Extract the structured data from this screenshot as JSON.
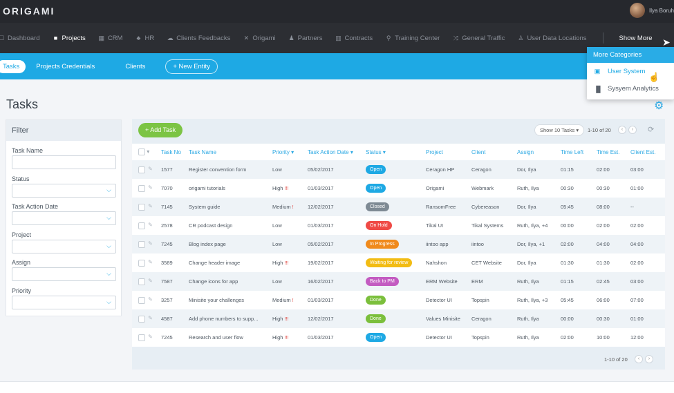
{
  "topbar": {
    "logo": "ORIGAMI",
    "user_name": "Ilya Boruh"
  },
  "nav": {
    "items": [
      {
        "label": "Dashboard",
        "icon": "☐",
        "active": false
      },
      {
        "label": "Projects",
        "icon": "■",
        "active": true
      },
      {
        "label": "CRM",
        "icon": "▦",
        "active": false
      },
      {
        "label": "HR",
        "icon": "♣",
        "active": false
      },
      {
        "label": "Clients Feedbacks",
        "icon": "☁",
        "active": false
      },
      {
        "label": "Origami",
        "icon": "✕",
        "active": false
      },
      {
        "label": "Partners",
        "icon": "♟",
        "active": false
      },
      {
        "label": "Contracts",
        "icon": "▥",
        "active": false
      },
      {
        "label": "Training Center",
        "icon": "⚲",
        "active": false
      },
      {
        "label": "General Traffic",
        "icon": "⤨",
        "active": false
      },
      {
        "label": "User Data Locations",
        "icon": "♙",
        "active": false
      }
    ],
    "more_label": "Show More"
  },
  "subnav": {
    "tabs": [
      "Tasks",
      "Projects Credentials",
      "Clients"
    ],
    "new_entity": "+ New Entity"
  },
  "dropdown": {
    "title": "More Categories",
    "items": [
      {
        "label": "User System",
        "icon": "▣"
      },
      {
        "label": "Sysyem Analytics",
        "icon": "▐▌"
      }
    ]
  },
  "page": {
    "title": "Tasks"
  },
  "filter": {
    "title": "Filter",
    "fields": [
      "Task Name",
      "Status",
      "Task Action Date",
      "Project",
      "Assign",
      "Priority"
    ]
  },
  "table": {
    "add_task": "+ Add Task",
    "show_select": "Show 10 Tasks",
    "range": "1-10 of 20",
    "footer_range": "1-10 of 20",
    "headers": [
      "Task No",
      "Task Name",
      "Priority",
      "Task Action Date",
      "Status",
      "Project",
      "Client",
      "Assign",
      "Time Left",
      "Time Est.",
      "Client Est."
    ],
    "rows": [
      {
        "no": "1577",
        "name": "Register convention form",
        "priority": "Low",
        "flag": "",
        "date": "05/02/2017",
        "status": "Open",
        "status_color": "#1ea9e4",
        "project": "Ceragon HP",
        "client": "Ceragon",
        "assign": "Dor, Ilya",
        "left": "01:15",
        "est": "02:00",
        "client_est": "03:00"
      },
      {
        "no": "7070",
        "name": "origami tutorials",
        "priority": "High",
        "flag": "!!!",
        "date": "01/03/2017",
        "status": "Open",
        "status_color": "#1ea9e4",
        "project": "Origami",
        "client": "Webmark",
        "assign": "Ruth, Ilya",
        "left": "00:30",
        "est": "00:30",
        "client_est": "01:00"
      },
      {
        "no": "7145",
        "name": "System guide",
        "priority": "Medium",
        "flag": "!",
        "date": "12/02/2017",
        "status": "Closed",
        "status_color": "#7e8a94",
        "project": "RansomFree",
        "client": "Cybereason",
        "assign": "Dor, Ilya",
        "left": "05:45",
        "est": "08:00",
        "client_est": "--"
      },
      {
        "no": "2578",
        "name": "CR podcast design",
        "priority": "Low",
        "flag": "",
        "date": "01/03/2017",
        "status": "On Hold",
        "status_color": "#ef4a46",
        "project": "Tikal UI",
        "client": "Tikal Systems",
        "assign": "Ruth, Ilya, +4",
        "left": "00:00",
        "est": "02:00",
        "client_est": "02:00"
      },
      {
        "no": "7245",
        "name": "Blog index page",
        "priority": "Low",
        "flag": "",
        "date": "05/02/2017",
        "status": "In Progress",
        "status_color": "#f08a1c",
        "project": "iintoo app",
        "client": "iintoo",
        "assign": "Dor, Ilya, +1",
        "left": "02:00",
        "est": "04:00",
        "client_est": "04:00"
      },
      {
        "no": "3589",
        "name": "Change header image",
        "priority": "High",
        "flag": "!!!",
        "date": "19/02/2017",
        "status": "Waiting for review",
        "status_color": "#f2bc13",
        "project": "Nahshon",
        "client": "CET Website",
        "assign": "Dor, Ilya",
        "left": "01:30",
        "est": "01:30",
        "client_est": "02:00"
      },
      {
        "no": "7587",
        "name": "Change icons for app",
        "priority": "Low",
        "flag": "",
        "date": "16/02/2017",
        "status": "Back to PM",
        "status_color": "#c35bc1",
        "project": "ERM Website",
        "client": "ERM",
        "assign": "Ruth, Ilya",
        "left": "01:15",
        "est": "02:45",
        "client_est": "03:00"
      },
      {
        "no": "3257",
        "name": "Minisite your challenges",
        "priority": "Medium",
        "flag": "!",
        "date": "01/03/2017",
        "status": "Done",
        "status_color": "#7bbf3c",
        "project": "Detector UI",
        "client": "Topspin",
        "assign": "Ruth, Ilya, +3",
        "left": "05:45",
        "est": "06:00",
        "client_est": "07:00"
      },
      {
        "no": "4587",
        "name": "Add phone numbers to supp...",
        "priority": "High",
        "flag": "!!!",
        "date": "12/02/2017",
        "status": "Done",
        "status_color": "#7bbf3c",
        "project": "Values Minisite",
        "client": "Ceragon",
        "assign": "Ruth, Ilya",
        "left": "00:00",
        "est": "00:30",
        "client_est": "01:00"
      },
      {
        "no": "7245",
        "name": "Research and user flow",
        "priority": "High",
        "flag": "!!!",
        "date": "01/03/2017",
        "status": "Open",
        "status_color": "#1ea9e4",
        "project": "Detector UI",
        "client": "Topspin",
        "assign": "Ruth, Ilya",
        "left": "02:00",
        "est": "10:00",
        "client_est": "12:00"
      }
    ]
  }
}
